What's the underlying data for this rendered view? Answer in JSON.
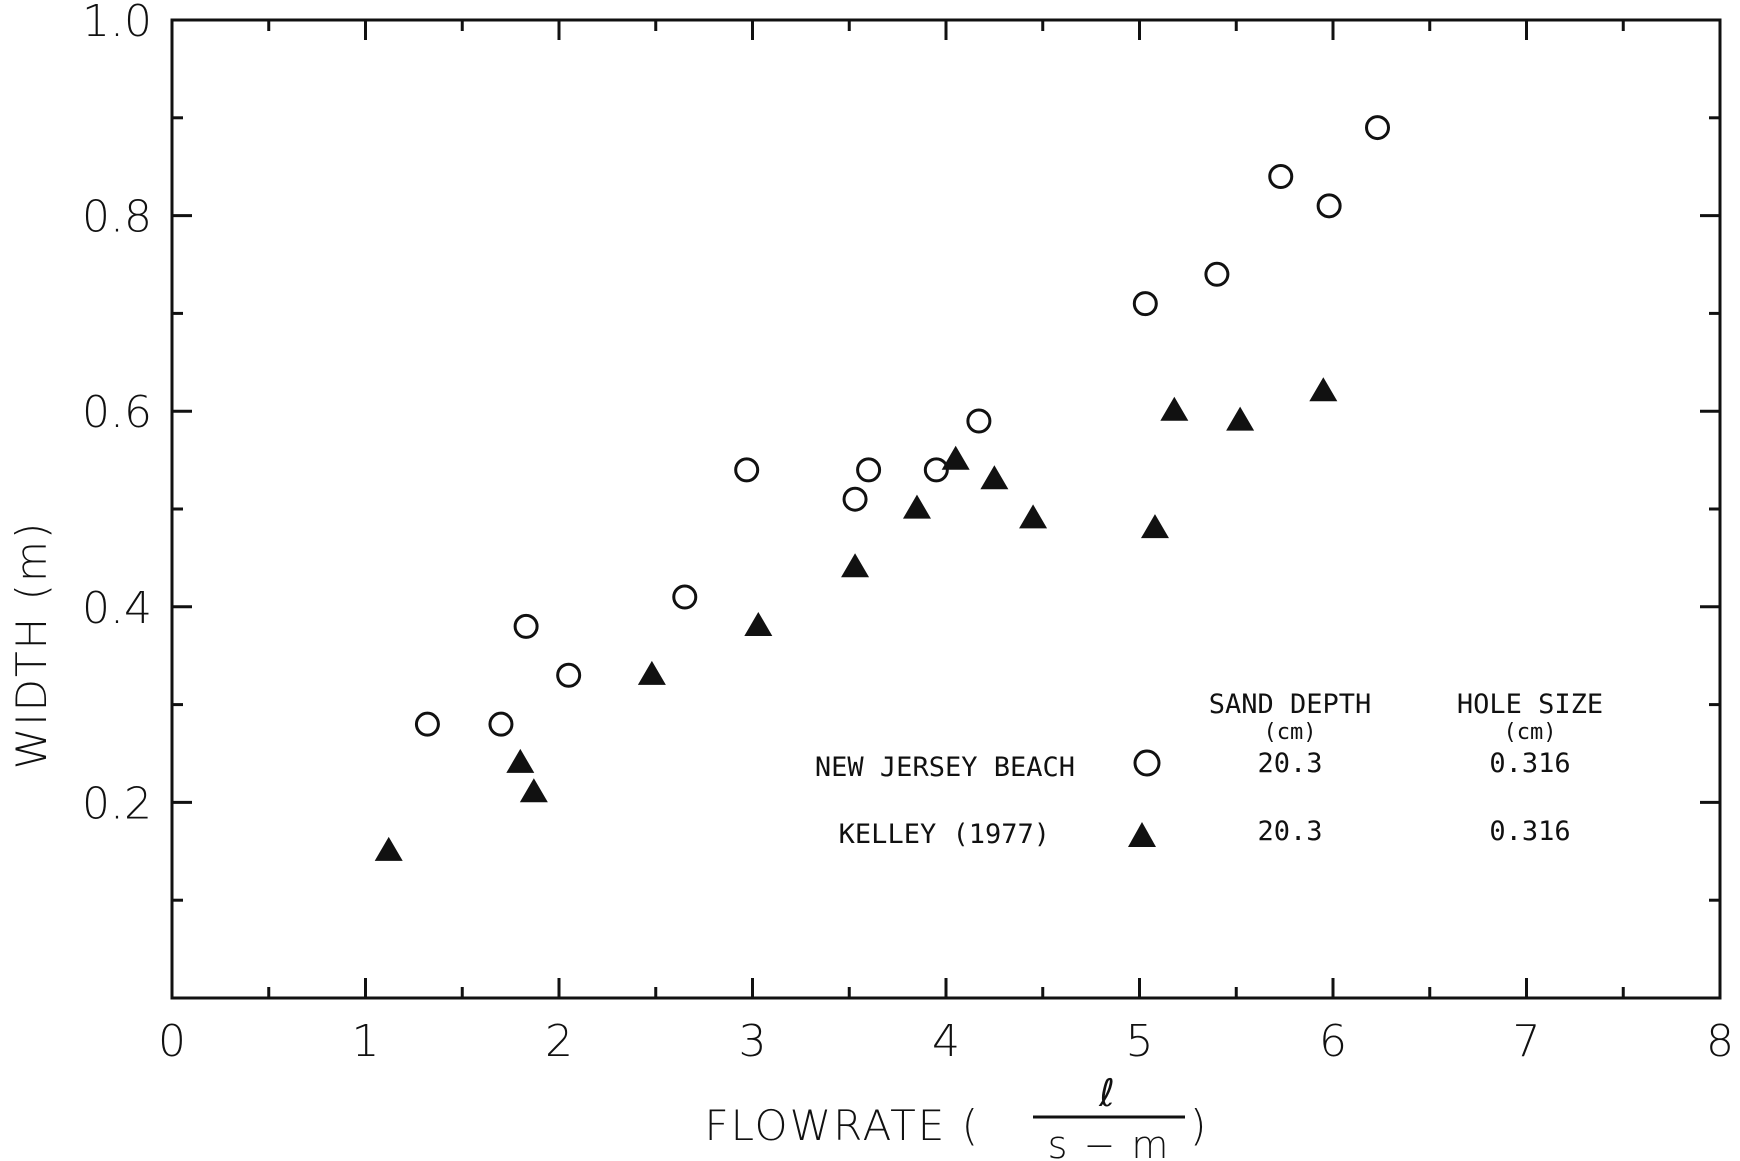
{
  "chart_data": {
    "type": "scatter",
    "title": "",
    "xlabel": "FLOWRATE (",
    "xlabel_unit_num": "ℓ",
    "xlabel_unit_den": "s − m",
    "xlabel_close": ")",
    "ylabel": "WIDTH (m)",
    "xlim": [
      0,
      8
    ],
    "ylim": [
      0,
      1.0
    ],
    "x_ticks": [
      0,
      1,
      2,
      3,
      4,
      5,
      6,
      7,
      8
    ],
    "x_tick_labels": [
      "0",
      "1",
      "2",
      "3",
      "4",
      "5",
      "6",
      "7",
      "8"
    ],
    "y_ticks": [
      0.2,
      0.4,
      0.6,
      0.8,
      1.0
    ],
    "y_tick_labels": [
      "0.2",
      "0.4",
      "0.6",
      "0.8",
      "1.0"
    ],
    "grid": false,
    "legend_position": "lower-right",
    "legend_headers": {
      "sand_depth": "SAND DEPTH",
      "sand_depth_unit": "(cm)",
      "hole_size": "HOLE SIZE",
      "hole_size_unit": "(cm)"
    },
    "series": [
      {
        "name": "NEW JERSEY BEACH",
        "marker": "open-circle",
        "sand_depth": "20.3",
        "hole_size": "0.316",
        "points": [
          [
            1.32,
            0.28
          ],
          [
            1.7,
            0.28
          ],
          [
            1.83,
            0.38
          ],
          [
            2.05,
            0.33
          ],
          [
            2.65,
            0.41
          ],
          [
            2.97,
            0.54
          ],
          [
            3.53,
            0.51
          ],
          [
            3.6,
            0.54
          ],
          [
            3.95,
            0.54
          ],
          [
            4.17,
            0.59
          ],
          [
            5.03,
            0.71
          ],
          [
            5.4,
            0.74
          ],
          [
            5.73,
            0.84
          ],
          [
            5.98,
            0.81
          ],
          [
            6.23,
            0.89
          ]
        ]
      },
      {
        "name": "KELLEY (1977)",
        "marker": "filled-triangle",
        "sand_depth": "20.3",
        "hole_size": "0.316",
        "points": [
          [
            1.12,
            0.15
          ],
          [
            1.8,
            0.24
          ],
          [
            1.87,
            0.21
          ],
          [
            2.48,
            0.33
          ],
          [
            3.03,
            0.38
          ],
          [
            3.53,
            0.44
          ],
          [
            3.85,
            0.5
          ],
          [
            4.05,
            0.55
          ],
          [
            4.25,
            0.53
          ],
          [
            4.45,
            0.49
          ],
          [
            5.08,
            0.48
          ],
          [
            5.18,
            0.6
          ],
          [
            5.52,
            0.59
          ],
          [
            5.95,
            0.62
          ]
        ]
      }
    ]
  },
  "colors": {
    "ink": "#111111",
    "background": "#ffffff"
  }
}
